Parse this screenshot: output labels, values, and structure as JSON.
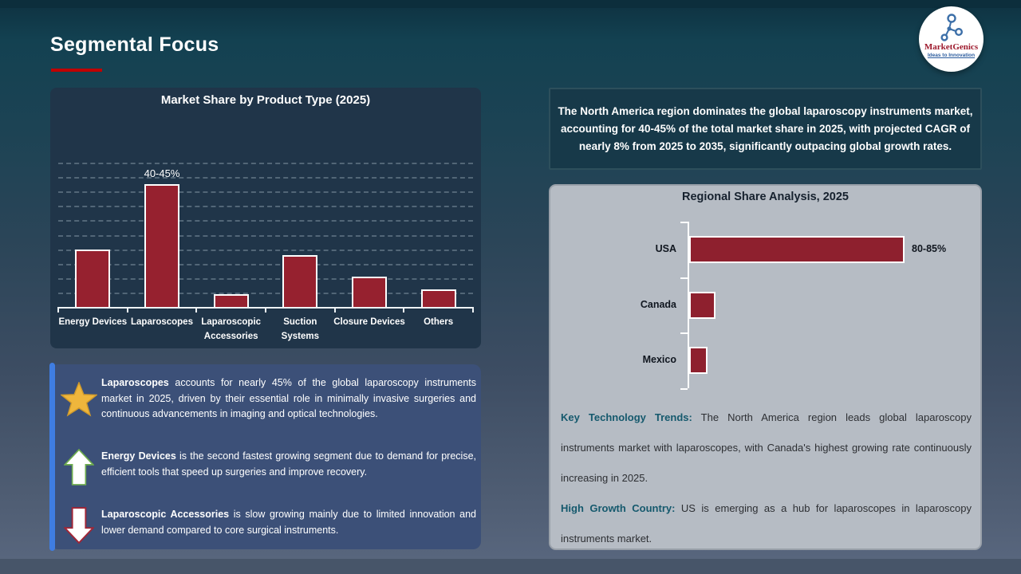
{
  "slide": {
    "title": "Segmental Focus",
    "logo": {
      "brand": "MarketGenics",
      "tagline": "Ideas to Innovation"
    }
  },
  "colors": {
    "accent_red": "#c00000",
    "bar_red": "#96212f",
    "panel_navy": "#203549",
    "insight_blue": "#3c5078",
    "accent_blue": "#3f7de2",
    "regional_gray": "#b6bcc4",
    "note_lead_teal": "#15596d"
  },
  "chart_data": [
    {
      "type": "bar",
      "title": "Market Share by Product Type (2025)",
      "categories": [
        "Energy Devices",
        "Laparoscopes",
        "Laparoscopic Accessories",
        "Suction Systems",
        "Closure Devices",
        "Others"
      ],
      "values": [
        20,
        42.5,
        4.5,
        18,
        10.5,
        6
      ],
      "data_labels": [
        "",
        "40-45%",
        "",
        "",
        "",
        ""
      ],
      "unit": "%",
      "ylim": [
        0,
        50
      ],
      "gridline_step": 5,
      "grid": "dashed-horizontal",
      "legend": "none"
    },
    {
      "type": "bar",
      "orientation": "horizontal",
      "title": "Regional Share Analysis, 2025",
      "categories": [
        "USA",
        "Canada",
        "Mexico"
      ],
      "values": [
        82.5,
        10,
        7
      ],
      "data_labels": [
        "80-85%",
        "",
        ""
      ],
      "unit": "%",
      "xlim": [
        0,
        100
      ],
      "grid": "off",
      "legend": "none"
    }
  ],
  "callout": {
    "text": "The North America region dominates the global laparoscopy instruments market, accounting for 40-45% of the total market share in 2025, with projected CAGR of nearly 8% from 2025 to 2035, significantly outpacing global growth rates."
  },
  "insights": [
    {
      "icon": "star",
      "lead": "Laparoscopes",
      "text": " accounts for nearly 45% of the global laparoscopy instruments market in 2025, driven by their essential role in minimally invasive surgeries and continuous advancements in imaging and optical technologies."
    },
    {
      "icon": "up-arrow",
      "lead": "Energy Devices",
      "text": " is the second fastest growing segment due to demand for precise, efficient tools that speed up surgeries and improve recovery."
    },
    {
      "icon": "down-arrow",
      "lead": "Laparoscopic Accessories",
      "text": " is slow growing mainly due to limited innovation and lower demand compared to core surgical instruments."
    }
  ],
  "regional_notes": [
    {
      "lead": "Key Technology Trends:",
      "text": " The North America region leads global laparoscopy instruments market with laparoscopes, with Canada's highest growing rate continuously increasing in 2025."
    },
    {
      "lead": "High Growth Country:",
      "text": " US is emerging as a hub for laparoscopes in laparoscopy instruments market."
    }
  ]
}
